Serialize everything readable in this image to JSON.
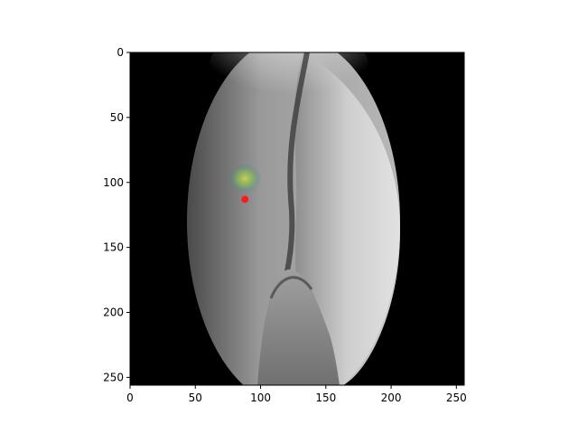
{
  "figure": {
    "type": "image-plot",
    "image_description_colors": {
      "background": "#000000",
      "tissue_light": "#d8d8d8",
      "tissue_dark": "#6e6e6e",
      "heatmap_yellow": "#d6d94a",
      "heatmap_green": "#3fa06a",
      "marker": "#ff1a1a"
    },
    "xlim": [
      0,
      256
    ],
    "ylim": [
      256,
      0
    ],
    "x_ticks": [
      {
        "value": 0,
        "label": "0"
      },
      {
        "value": 50,
        "label": "50"
      },
      {
        "value": 100,
        "label": "100"
      },
      {
        "value": 150,
        "label": "150"
      },
      {
        "value": 200,
        "label": "200"
      },
      {
        "value": 250,
        "label": "250"
      }
    ],
    "y_ticks": [
      {
        "value": 0,
        "label": "0"
      },
      {
        "value": 50,
        "label": "50"
      },
      {
        "value": 100,
        "label": "100"
      },
      {
        "value": 150,
        "label": "150"
      },
      {
        "value": 200,
        "label": "200"
      },
      {
        "value": 250,
        "label": "250"
      }
    ],
    "marker_point": {
      "x": 88,
      "y": 113
    },
    "heatmap_region": {
      "x": 88,
      "y": 97
    }
  }
}
